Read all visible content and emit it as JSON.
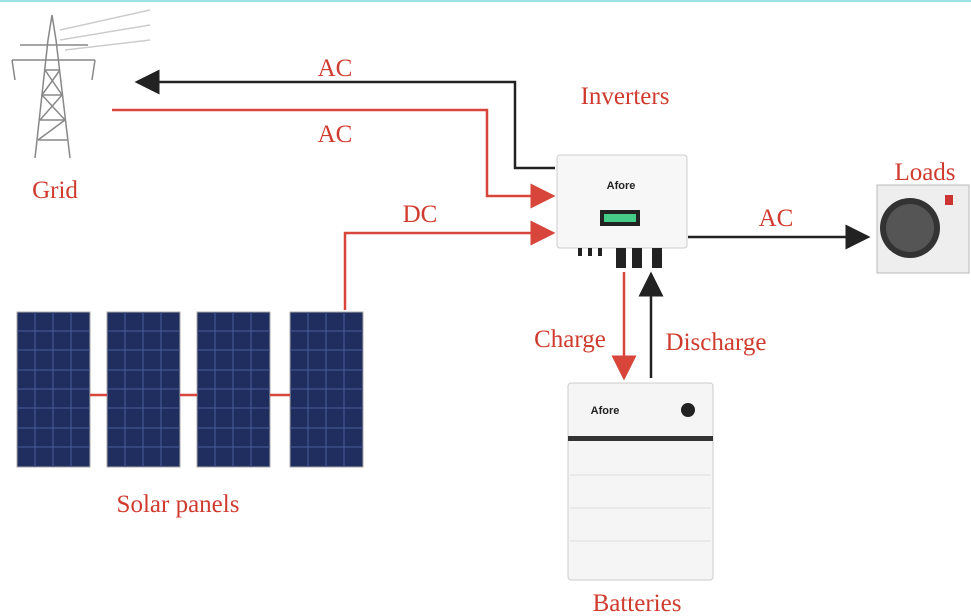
{
  "nodes": {
    "grid": "Grid",
    "inverters": "Inverters",
    "inverter_brand": "Afore",
    "loads": "Loads",
    "solar_panels": "Solar panels",
    "batteries": "Batteries",
    "battery_brand": "Afore"
  },
  "edges": {
    "inverter_to_grid": "AC",
    "grid_to_inverter": "AC",
    "solar_to_inverter": "DC",
    "inverter_to_loads": "AC",
    "charge": "Charge",
    "discharge": "Discharge"
  }
}
